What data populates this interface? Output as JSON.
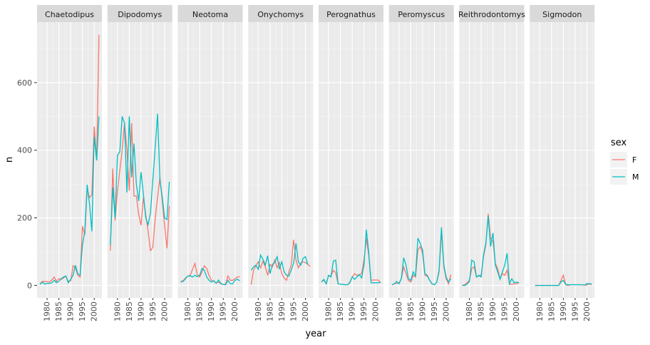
{
  "chart_data": {
    "type": "line",
    "facet_by": "genus",
    "xlabel": "year",
    "ylabel": "n",
    "xlim": [
      1975.75,
      2003.25
    ],
    "ylim": [
      -37,
      779
    ],
    "x_ticks": [
      1980,
      1985,
      1990,
      1995,
      2000
    ],
    "y_ticks": [
      0,
      200,
      400,
      600
    ],
    "grid": true,
    "legend": {
      "title": "sex",
      "position": "right",
      "entries": [
        "F",
        "M"
      ]
    },
    "colors": {
      "F": "#F8766D",
      "M": "#00BFC4"
    },
    "x": [
      1977,
      1978,
      1979,
      1980,
      1981,
      1982,
      1983,
      1984,
      1985,
      1986,
      1987,
      1988,
      1989,
      1990,
      1991,
      1992,
      1993,
      1994,
      1995,
      1996,
      1997,
      1998,
      1999,
      2000,
      2001,
      2002
    ],
    "facets": [
      {
        "name": "Chaetodipus",
        "F": [
          5,
          12,
          12,
          11,
          10,
          16,
          25,
          12,
          20,
          18,
          22,
          28,
          12,
          14,
          58,
          52,
          30,
          25,
          175,
          150,
          285,
          260,
          268,
          470,
          370,
          741
        ],
        "M": [
          3,
          10,
          4,
          6,
          6,
          8,
          15,
          8,
          12,
          20,
          25,
          28,
          8,
          18,
          30,
          60,
          35,
          30,
          120,
          160,
          298,
          240,
          160,
          440,
          370,
          500
        ]
      },
      {
        "name": "Dipodomys",
        "F": [
          103,
          346,
          192,
          280,
          340,
          400,
          480,
          400,
          280,
          480,
          265,
          265,
          210,
          178,
          260,
          210,
          160,
          103,
          112,
          200,
          260,
          320,
          250,
          175,
          110,
          235
        ],
        "M": [
          120,
          290,
          200,
          385,
          395,
          500,
          480,
          275,
          500,
          320,
          420,
          300,
          250,
          335,
          270,
          200,
          180,
          215,
          310,
          410,
          508,
          310,
          260,
          200,
          195,
          307
        ]
      },
      {
        "name": "Neotoma",
        "F": [
          12,
          14,
          22,
          28,
          30,
          48,
          65,
          32,
          25,
          40,
          58,
          50,
          30,
          15,
          12,
          8,
          10,
          5,
          3,
          4,
          28,
          15,
          15,
          20,
          25,
          26
        ],
        "M": [
          10,
          12,
          20,
          28,
          28,
          25,
          30,
          26,
          30,
          50,
          45,
          25,
          15,
          10,
          14,
          6,
          16,
          6,
          3,
          2,
          15,
          5,
          5,
          15,
          18,
          14
        ]
      },
      {
        "name": "Onychomys",
        "F": [
          2,
          45,
          58,
          70,
          52,
          72,
          55,
          30,
          62,
          55,
          75,
          52,
          68,
          35,
          22,
          15,
          40,
          60,
          135,
          75,
          52,
          65,
          70,
          68,
          62,
          56
        ],
        "M": [
          45,
          55,
          60,
          48,
          90,
          78,
          60,
          88,
          35,
          62,
          68,
          85,
          48,
          70,
          40,
          30,
          28,
          45,
          65,
          125,
          70,
          60,
          80,
          85,
          62,
          null
        ]
      },
      {
        "name": "Perognathus",
        "F": [
          12,
          16,
          5,
          30,
          28,
          45,
          38,
          5,
          4,
          3,
          2,
          2,
          10,
          25,
          35,
          30,
          32,
          35,
          75,
          140,
          90,
          15,
          16,
          16,
          16,
          8
        ],
        "M": [
          10,
          18,
          5,
          30,
          25,
          72,
          75,
          5,
          4,
          3,
          2,
          2,
          8,
          25,
          18,
          25,
          32,
          22,
          60,
          165,
          100,
          8,
          8,
          8,
          8,
          9
        ]
      },
      {
        "name": "Peromyscus",
        "F": [
          2,
          5,
          6,
          8,
          20,
          55,
          35,
          15,
          10,
          30,
          25,
          105,
          115,
          95,
          30,
          28,
          15,
          5,
          2,
          10,
          40,
          160,
          55,
          20,
          5,
          32
        ],
        "M": [
          2,
          5,
          12,
          5,
          20,
          82,
          60,
          20,
          15,
          40,
          28,
          140,
          125,
          105,
          35,
          30,
          15,
          5,
          2,
          10,
          45,
          172,
          60,
          25,
          10,
          20
        ]
      },
      {
        "name": "Reithrodontomys",
        "F": [
          0,
          2,
          8,
          15,
          50,
          55,
          25,
          28,
          30,
          85,
          120,
          212,
          140,
          130,
          65,
          50,
          20,
          35,
          30,
          45,
          5,
          3,
          5,
          5,
          8,
          null
        ],
        "M": [
          0,
          0,
          4,
          12,
          75,
          70,
          25,
          30,
          25,
          90,
          125,
          205,
          115,
          155,
          60,
          40,
          18,
          40,
          60,
          95,
          5,
          20,
          8,
          10,
          8,
          null
        ]
      },
      {
        "name": "Sigmodon",
        "F": [
          null,
          0,
          0,
          0,
          0,
          0,
          0,
          0,
          0,
          0,
          0,
          0,
          15,
          30,
          2,
          0,
          2,
          2,
          2,
          2,
          2,
          2,
          1,
          1,
          6,
          2
        ],
        "M": [
          null,
          0,
          0,
          0,
          0,
          0,
          0,
          0,
          0,
          0,
          0,
          0,
          10,
          15,
          3,
          2,
          2,
          2,
          2,
          2,
          2,
          2,
          1,
          6,
          4,
          5
        ]
      }
    ]
  }
}
